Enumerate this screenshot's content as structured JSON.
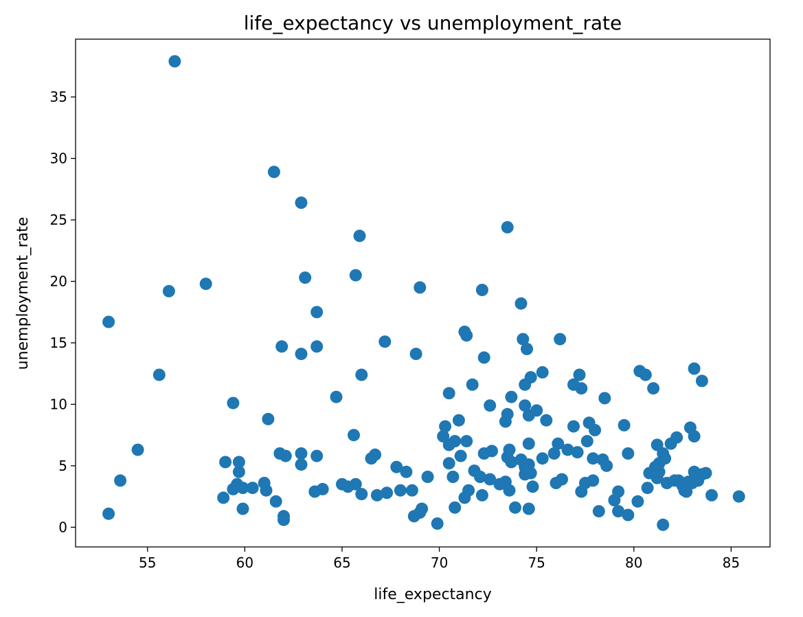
{
  "chart_data": {
    "type": "scatter",
    "title": "life_expectancy vs unemployment_rate",
    "xlabel": "life_expectancy",
    "ylabel": "unemployment_rate",
    "xlim": [
      51.3,
      87.0
    ],
    "ylim": [
      -1.6,
      39.7
    ],
    "xticks": [
      55,
      60,
      65,
      70,
      75,
      80,
      85
    ],
    "yticks": [
      0,
      5,
      10,
      15,
      20,
      25,
      30,
      35
    ],
    "grid": false,
    "point_color": "#1f77b4",
    "points": [
      [
        53.0,
        16.7
      ],
      [
        53.0,
        1.1
      ],
      [
        53.6,
        3.8
      ],
      [
        54.5,
        6.3
      ],
      [
        55.6,
        12.4
      ],
      [
        56.1,
        19.2
      ],
      [
        56.4,
        37.9
      ],
      [
        58.0,
        19.8
      ],
      [
        58.9,
        2.4
      ],
      [
        59.0,
        5.3
      ],
      [
        59.4,
        10.1
      ],
      [
        59.4,
        3.1
      ],
      [
        59.6,
        3.5
      ],
      [
        59.7,
        4.5
      ],
      [
        59.7,
        5.3
      ],
      [
        59.9,
        3.2
      ],
      [
        59.9,
        1.5
      ],
      [
        60.4,
        3.2
      ],
      [
        61.0,
        3.6
      ],
      [
        61.1,
        3.0
      ],
      [
        61.2,
        8.8
      ],
      [
        61.5,
        28.9
      ],
      [
        61.6,
        2.1
      ],
      [
        61.8,
        6.0
      ],
      [
        61.9,
        14.7
      ],
      [
        62.0,
        0.9
      ],
      [
        62.0,
        0.6
      ],
      [
        62.1,
        5.8
      ],
      [
        62.9,
        26.4
      ],
      [
        62.9,
        14.1
      ],
      [
        62.9,
        6.0
      ],
      [
        62.9,
        5.1
      ],
      [
        63.1,
        20.3
      ],
      [
        63.6,
        2.9
      ],
      [
        63.7,
        17.5
      ],
      [
        63.7,
        14.7
      ],
      [
        63.7,
        5.8
      ],
      [
        64.0,
        3.1
      ],
      [
        64.7,
        10.6
      ],
      [
        65.0,
        3.5
      ],
      [
        65.3,
        3.3
      ],
      [
        65.6,
        7.5
      ],
      [
        65.7,
        20.5
      ],
      [
        65.7,
        3.5
      ],
      [
        65.9,
        23.7
      ],
      [
        66.0,
        12.4
      ],
      [
        66.0,
        2.7
      ],
      [
        66.5,
        5.6
      ],
      [
        66.7,
        5.9
      ],
      [
        66.8,
        2.6
      ],
      [
        67.2,
        15.1
      ],
      [
        67.3,
        2.8
      ],
      [
        67.8,
        4.9
      ],
      [
        68.0,
        3.0
      ],
      [
        68.3,
        4.5
      ],
      [
        68.6,
        3.0
      ],
      [
        68.7,
        0.9
      ],
      [
        68.8,
        14.1
      ],
      [
        69.0,
        19.5
      ],
      [
        69.0,
        1.2
      ],
      [
        69.1,
        1.5
      ],
      [
        69.4,
        4.1
      ],
      [
        69.9,
        0.3
      ],
      [
        70.2,
        7.4
      ],
      [
        70.3,
        8.2
      ],
      [
        70.5,
        10.9
      ],
      [
        70.5,
        6.7
      ],
      [
        70.5,
        5.2
      ],
      [
        70.7,
        4.1
      ],
      [
        70.8,
        7.0
      ],
      [
        70.8,
        1.6
      ],
      [
        71.0,
        8.7
      ],
      [
        71.1,
        5.8
      ],
      [
        71.3,
        15.9
      ],
      [
        71.3,
        2.4
      ],
      [
        71.4,
        15.6
      ],
      [
        71.4,
        7.0
      ],
      [
        71.5,
        3.0
      ],
      [
        71.7,
        11.6
      ],
      [
        71.8,
        4.6
      ],
      [
        72.1,
        4.1
      ],
      [
        72.2,
        19.3
      ],
      [
        72.2,
        2.6
      ],
      [
        72.3,
        13.8
      ],
      [
        72.3,
        6.0
      ],
      [
        72.6,
        9.9
      ],
      [
        72.6,
        3.9
      ],
      [
        72.7,
        6.2
      ],
      [
        73.1,
        3.5
      ],
      [
        73.4,
        8.6
      ],
      [
        73.4,
        3.7
      ],
      [
        73.5,
        24.4
      ],
      [
        73.5,
        9.2
      ],
      [
        73.5,
        5.7
      ],
      [
        73.6,
        6.3
      ],
      [
        73.6,
        3.0
      ],
      [
        73.7,
        10.6
      ],
      [
        73.7,
        5.3
      ],
      [
        73.9,
        1.6
      ],
      [
        74.2,
        18.2
      ],
      [
        74.2,
        5.5
      ],
      [
        74.3,
        15.3
      ],
      [
        74.4,
        11.6
      ],
      [
        74.4,
        9.9
      ],
      [
        74.4,
        4.9
      ],
      [
        74.4,
        4.3
      ],
      [
        74.5,
        14.5
      ],
      [
        74.6,
        9.1
      ],
      [
        74.6,
        6.8
      ],
      [
        74.6,
        5.1
      ],
      [
        74.6,
        1.5
      ],
      [
        74.7,
        12.2
      ],
      [
        74.7,
        4.4
      ],
      [
        74.8,
        3.3
      ],
      [
        75.0,
        9.5
      ],
      [
        75.3,
        12.6
      ],
      [
        75.3,
        5.6
      ],
      [
        75.5,
        8.7
      ],
      [
        75.9,
        6.0
      ],
      [
        76.0,
        3.6
      ],
      [
        76.1,
        6.8
      ],
      [
        76.2,
        15.3
      ],
      [
        76.3,
        3.9
      ],
      [
        76.6,
        6.3
      ],
      [
        76.9,
        11.6
      ],
      [
        76.9,
        8.2
      ],
      [
        77.1,
        6.1
      ],
      [
        77.2,
        12.4
      ],
      [
        77.3,
        11.3
      ],
      [
        77.3,
        2.9
      ],
      [
        77.5,
        3.6
      ],
      [
        77.6,
        7.0
      ],
      [
        77.7,
        8.5
      ],
      [
        77.9,
        5.6
      ],
      [
        77.9,
        3.8
      ],
      [
        78.0,
        7.9
      ],
      [
        78.2,
        1.3
      ],
      [
        78.4,
        5.5
      ],
      [
        78.5,
        10.5
      ],
      [
        78.6,
        5.0
      ],
      [
        79.0,
        2.2
      ],
      [
        79.2,
        2.9
      ],
      [
        79.2,
        1.3
      ],
      [
        79.5,
        8.3
      ],
      [
        79.7,
        6.0
      ],
      [
        79.7,
        1.0
      ],
      [
        80.2,
        2.1
      ],
      [
        80.3,
        12.7
      ],
      [
        80.6,
        12.4
      ],
      [
        80.7,
        3.2
      ],
      [
        80.8,
        4.4
      ],
      [
        81.0,
        11.3
      ],
      [
        81.1,
        4.9
      ],
      [
        81.2,
        6.7
      ],
      [
        81.2,
        4.0
      ],
      [
        81.3,
        4.5
      ],
      [
        81.3,
        5.2
      ],
      [
        81.5,
        6.0
      ],
      [
        81.5,
        0.2
      ],
      [
        81.6,
        5.6
      ],
      [
        81.7,
        3.6
      ],
      [
        81.9,
        6.8
      ],
      [
        82.1,
        3.8
      ],
      [
        82.2,
        7.3
      ],
      [
        82.3,
        3.8
      ],
      [
        82.5,
        3.4
      ],
      [
        82.6,
        3.0
      ],
      [
        82.7,
        2.9
      ],
      [
        82.8,
        3.7
      ],
      [
        82.9,
        8.1
      ],
      [
        83.0,
        3.6
      ],
      [
        83.1,
        12.9
      ],
      [
        83.1,
        7.4
      ],
      [
        83.1,
        4.5
      ],
      [
        83.3,
        3.8
      ],
      [
        83.5,
        11.9
      ],
      [
        83.5,
        4.3
      ],
      [
        83.7,
        4.4
      ],
      [
        84.0,
        2.6
      ],
      [
        85.4,
        2.5
      ]
    ]
  }
}
